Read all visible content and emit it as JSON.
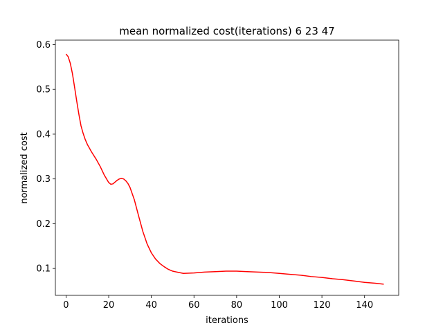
{
  "chart_data": {
    "type": "line",
    "title": "mean normalized cost(iterations) 6  23 47",
    "xlabel": "iterations",
    "ylabel": "normalized cost",
    "xlim": [
      -5,
      156
    ],
    "ylim": [
      0.04,
      0.61
    ],
    "xticks": [
      0,
      20,
      40,
      60,
      80,
      100,
      120,
      140
    ],
    "yticks": [
      0.1,
      0.2,
      0.3,
      0.4,
      0.5,
      0.6
    ],
    "ytick_labels": [
      "0.1",
      "0.2",
      "0.3",
      "0.4",
      "0.5",
      "0.6"
    ],
    "grid": false,
    "series": [
      {
        "color": "#ff0000",
        "x": [
          0,
          1,
          2,
          3,
          4,
          5,
          6,
          7,
          8,
          9,
          10,
          12,
          14,
          16,
          18,
          20,
          21,
          22,
          23,
          24,
          25,
          26,
          27,
          28,
          29,
          30,
          32,
          34,
          36,
          38,
          40,
          42,
          44,
          46,
          48,
          50,
          52,
          55,
          60,
          65,
          70,
          75,
          80,
          85,
          90,
          95,
          100,
          105,
          110,
          115,
          120,
          125,
          130,
          135,
          140,
          145,
          149
        ],
        "y": [
          0.579,
          0.573,
          0.558,
          0.535,
          0.505,
          0.474,
          0.445,
          0.419,
          0.402,
          0.388,
          0.377,
          0.36,
          0.345,
          0.328,
          0.308,
          0.292,
          0.288,
          0.289,
          0.293,
          0.297,
          0.3,
          0.301,
          0.3,
          0.296,
          0.29,
          0.281,
          0.254,
          0.218,
          0.183,
          0.155,
          0.135,
          0.121,
          0.111,
          0.104,
          0.098,
          0.094,
          0.092,
          0.089,
          0.09,
          0.092,
          0.093,
          0.094,
          0.094,
          0.093,
          0.092,
          0.091,
          0.089,
          0.087,
          0.085,
          0.082,
          0.08,
          0.077,
          0.075,
          0.072,
          0.069,
          0.067,
          0.065
        ]
      }
    ]
  }
}
